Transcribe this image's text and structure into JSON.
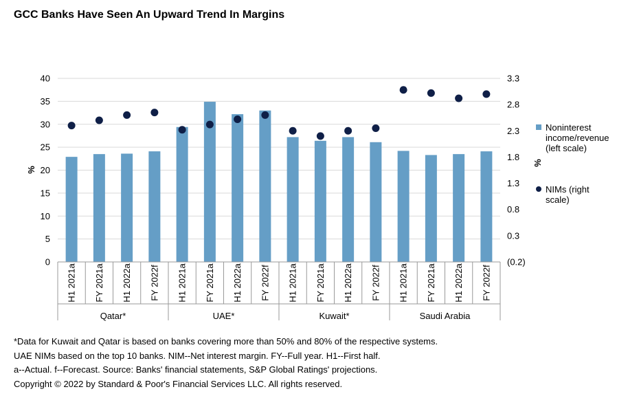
{
  "title": "GCC Banks Have Seen An Upward Trend In Margins",
  "chart_data": {
    "type": "bar",
    "categories": [
      "H1 2021a",
      "FY 2021a",
      "H1 2022a",
      "FY 2022f",
      "H1 2021a",
      "FY 2021a",
      "H1 2022a",
      "FY 2022f",
      "H1 2021a",
      "FY 2021a",
      "H1 2022a",
      "FY 2022f",
      "H1 2021a",
      "FY 2021a",
      "H1 2022a",
      "FY 2022f"
    ],
    "groups": [
      {
        "label": "Qatar*",
        "count": 4
      },
      {
        "label": "UAE*",
        "count": 4
      },
      {
        "label": "Kuwait*",
        "count": 4
      },
      {
        "label": "Saudi Arabia",
        "count": 4
      }
    ],
    "series": [
      {
        "name": "Noninterest income/revenue (left scale)",
        "type": "bar",
        "axis": "left",
        "color": "#659ec6",
        "values": [
          22.9,
          23.5,
          23.6,
          24.1,
          29.4,
          34.9,
          32.2,
          33.0,
          27.2,
          26.4,
          27.2,
          26.1,
          24.2,
          23.3,
          23.5,
          24.1
        ]
      },
      {
        "name": "NIMs (right scale)",
        "type": "scatter",
        "axis": "right",
        "color": "#0f1f47",
        "values": [
          2.4,
          2.5,
          2.6,
          2.65,
          2.32,
          2.42,
          2.52,
          2.6,
          2.3,
          2.2,
          2.3,
          2.35,
          3.08,
          3.02,
          2.92,
          3.0
        ]
      }
    ],
    "ylabel_left": "%",
    "ylabel_right": "%",
    "ylim_left": [
      0,
      40
    ],
    "yticks_left": [
      "0",
      "5",
      "10",
      "15",
      "20",
      "25",
      "30",
      "35",
      "40"
    ],
    "ylim_right": [
      -0.2,
      3.3
    ],
    "yticks_right": [
      "(0.2)",
      "0.3",
      "0.8",
      "1.3",
      "1.8",
      "2.3",
      "2.8",
      "3.3"
    ],
    "grid": "horizontal",
    "legend_position": "right"
  },
  "legend": {
    "bar_label_lines": [
      "Noninterest",
      "income/revenue",
      "(left scale)"
    ],
    "dot_label_lines": [
      "NIMs (right",
      "scale)"
    ]
  },
  "notes": [
    "*Data for Kuwait and Qatar is based on banks covering  more than 50% and 80% of the respective systems.",
    "UAE NIMs based on the top 10 banks. NIM--Net interest margin. FY--Full year. H1--First half.",
    "a--Actual. f--Forecast. Source: Banks' financial statements, S&P Global Ratings' projections.",
    "Copyright © 2022 by Standard & Poor's Financial Services LLC. All rights reserved."
  ]
}
